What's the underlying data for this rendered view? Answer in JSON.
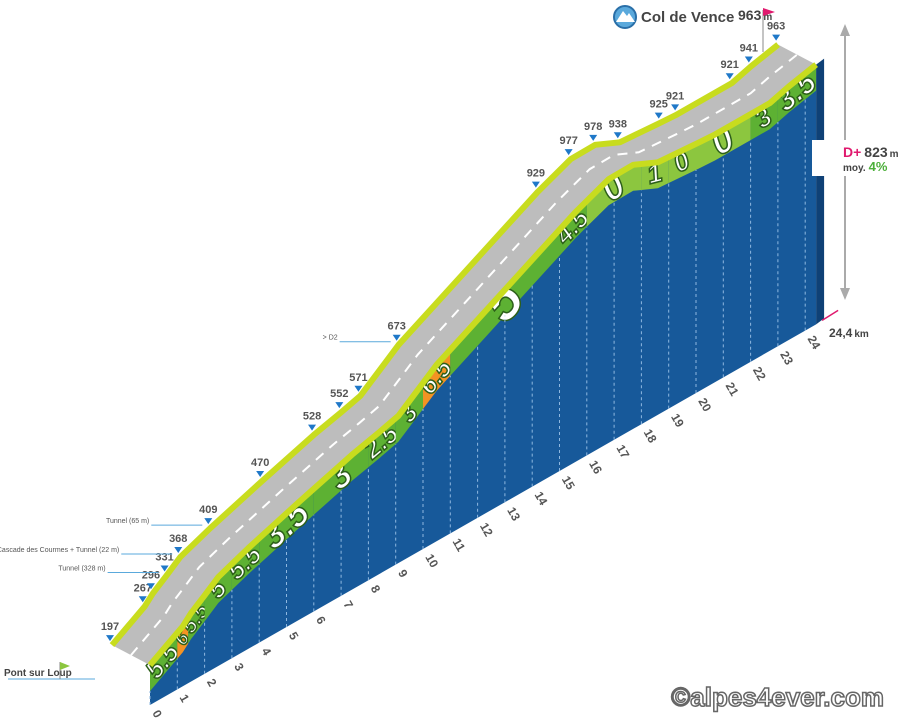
{
  "chart_data": {
    "type": "profile",
    "start": "Pont sur Loup",
    "summit": {
      "name": "Col de Vence",
      "altitude": 963,
      "unit": "m"
    },
    "elevation_gain": {
      "label": "D+",
      "value": 823,
      "unit": "m"
    },
    "average_grade": {
      "label": "moy.",
      "value": 4,
      "value_label": "4%"
    },
    "distance": {
      "value": 24.4,
      "value_label": "24,4",
      "unit": "km"
    },
    "x": [
      0,
      1.2,
      1.5,
      2.0,
      2.5,
      3.6,
      5.5,
      7.4,
      8.4,
      9.1,
      10.5,
      15.6,
      16.8,
      17.7,
      18.6,
      20.1,
      20.7,
      22.7,
      23.4,
      24.4
    ],
    "values": [
      197,
      267,
      296,
      331,
      368,
      409,
      470,
      528,
      552,
      571,
      673,
      929,
      977,
      978,
      938,
      925,
      921,
      921,
      941,
      963
    ],
    "notes": [
      null,
      null,
      null,
      "Tunnel (328 m)",
      "Cascade des Courmes + Tunnel (22 m)",
      "Tunnel (65 m)",
      null,
      null,
      null,
      null,
      "> D2",
      null,
      null,
      null,
      null,
      null,
      null,
      null,
      null,
      null
    ],
    "xticks": [
      0,
      1,
      2,
      3,
      4,
      5,
      6,
      7,
      8,
      9,
      10,
      11,
      12,
      13,
      14,
      15,
      16,
      17,
      18,
      19,
      20,
      21,
      22,
      23,
      24
    ],
    "segments": [
      {
        "from": 0,
        "to": 1,
        "grade": 5.5,
        "color": "#5db133"
      },
      {
        "from": 1,
        "to": 1.4,
        "grade": 6,
        "color": "#f39323"
      },
      {
        "from": 1.4,
        "to": 2,
        "grade": 5.5,
        "color": "#5db133"
      },
      {
        "from": 2,
        "to": 3,
        "grade": 5,
        "color": "#5db133"
      },
      {
        "from": 3,
        "to": 4,
        "grade": 5.5,
        "color": "#5db133"
      },
      {
        "from": 4,
        "to": 6,
        "grade": 3.5,
        "color": "#5db133"
      },
      {
        "from": 6,
        "to": 8,
        "grade": 3,
        "color": "#5db133"
      },
      {
        "from": 8,
        "to": 9,
        "grade": 2.5,
        "color": "#5db133"
      },
      {
        "from": 9,
        "to": 10,
        "grade": 3,
        "color": "#5db133"
      },
      {
        "from": 10,
        "to": 11,
        "grade": 6.5,
        "color": "#f39323"
      },
      {
        "from": 11,
        "to": 15,
        "grade": 5,
        "color": "#5db133"
      },
      {
        "from": 15,
        "to": 16,
        "grade": 4.5,
        "color": "#5db133"
      },
      {
        "from": 16,
        "to": 18,
        "grade": 0,
        "color": "#8cc63f"
      },
      {
        "from": 18,
        "to": 19,
        "grade": 1,
        "color": "#8cc63f"
      },
      {
        "from": 19,
        "to": 20,
        "grade": 0,
        "color": "#8cc63f"
      },
      {
        "from": 20,
        "to": 22,
        "grade": 0,
        "color": "#8cc63f"
      },
      {
        "from": 22,
        "to": 23,
        "grade": 3,
        "color": "#5db133"
      },
      {
        "from": 23,
        "to": 24.4,
        "grade": 3.5,
        "color": "#5db133"
      }
    ],
    "credit": "©alpes4ever.com"
  }
}
